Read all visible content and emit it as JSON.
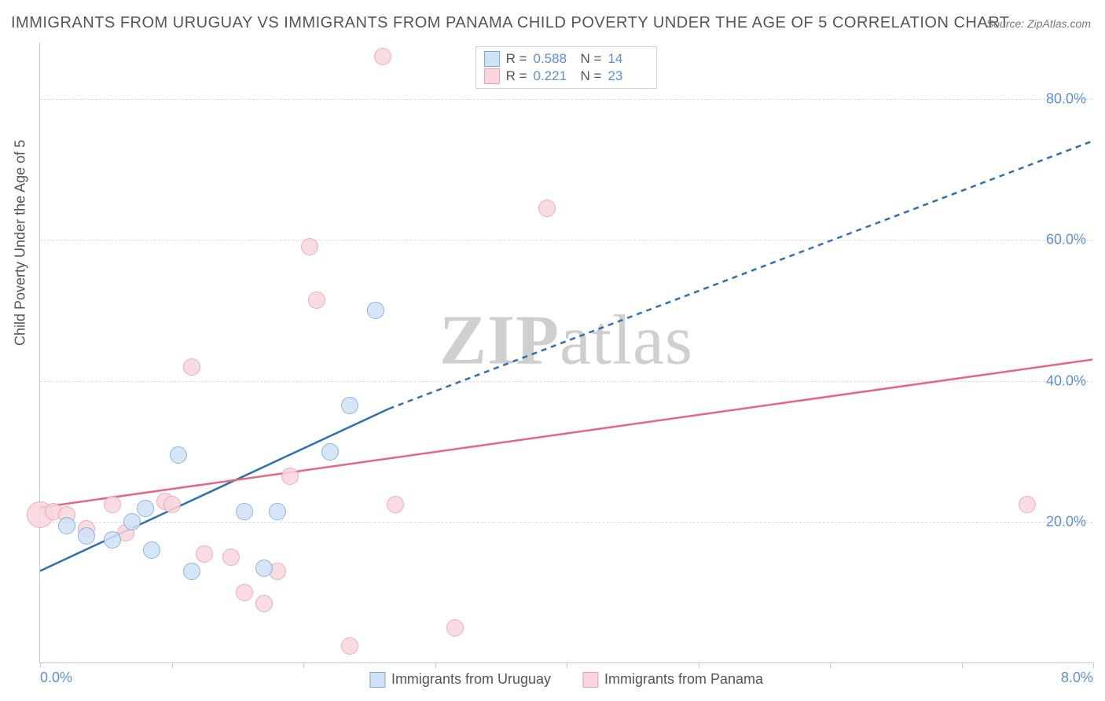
{
  "title": "IMMIGRANTS FROM URUGUAY VS IMMIGRANTS FROM PANAMA CHILD POVERTY UNDER THE AGE OF 5 CORRELATION CHART",
  "source_label": "Source: ",
  "source_value": "ZipAtlas.com",
  "watermark_bold": "ZIP",
  "watermark_light": "atlas",
  "ylabel": "Child Poverty Under the Age of 5",
  "colors": {
    "blue_fill": "#cfe2f6",
    "blue_stroke": "#7aa7d9",
    "blue_line": "#2f6fb3",
    "pink_fill": "#f9d5dd",
    "pink_stroke": "#e7a0b2",
    "pink_line": "#e8657f",
    "tick_text": "#5b8fd6",
    "grid": "#dcdcdc",
    "axis": "#c8c8c8",
    "text": "#555555",
    "bg": "#ffffff"
  },
  "chart": {
    "type": "scatter",
    "xlim": [
      0.0,
      8.0
    ],
    "ylim": [
      0.0,
      88.0
    ],
    "y_gridlines": [
      20.0,
      40.0,
      60.0,
      80.0
    ],
    "y_tick_labels": [
      "20.0%",
      "40.0%",
      "60.0%",
      "80.0%"
    ],
    "x_ticks": [
      0.0,
      1.0,
      2.0,
      3.0,
      4.0,
      5.0,
      6.0,
      7.0,
      8.0
    ],
    "x_tick_labels": {
      "0": "0.0%",
      "8": "8.0%"
    },
    "marker_radius": 11,
    "line_width": 2.5,
    "title_fontsize": 20,
    "label_fontsize": 18
  },
  "legend_top": {
    "rows": [
      {
        "color": "blue",
        "r_label": "R =",
        "r": "0.588",
        "n_label": "N =",
        "n": "14"
      },
      {
        "color": "pink",
        "r_label": "R =",
        "r": "0.221",
        "n_label": "N =",
        "n": "23"
      }
    ]
  },
  "legend_bottom": {
    "items": [
      {
        "color": "blue",
        "label": "Immigrants from Uruguay"
      },
      {
        "color": "pink",
        "label": "Immigrants from Panama"
      }
    ]
  },
  "series": {
    "uruguay": {
      "color": "blue",
      "points": [
        {
          "x": 0.2,
          "y": 19.5,
          "r": 11
        },
        {
          "x": 0.35,
          "y": 18.0,
          "r": 11
        },
        {
          "x": 0.55,
          "y": 17.5,
          "r": 11
        },
        {
          "x": 0.7,
          "y": 20.0,
          "r": 11
        },
        {
          "x": 0.85,
          "y": 16.0,
          "r": 11
        },
        {
          "x": 1.05,
          "y": 29.5,
          "r": 11
        },
        {
          "x": 1.15,
          "y": 13.0,
          "r": 11
        },
        {
          "x": 1.55,
          "y": 21.5,
          "r": 11
        },
        {
          "x": 1.7,
          "y": 13.5,
          "r": 11
        },
        {
          "x": 1.8,
          "y": 21.5,
          "r": 11
        },
        {
          "x": 2.2,
          "y": 30.0,
          "r": 11
        },
        {
          "x": 2.35,
          "y": 36.5,
          "r": 11
        },
        {
          "x": 2.55,
          "y": 50.0,
          "r": 11
        },
        {
          "x": 0.8,
          "y": 22.0,
          "r": 11
        }
      ],
      "trend": {
        "x1": 0.0,
        "y1": 13.0,
        "x2": 2.65,
        "y2": 36.0,
        "x2_ext": 8.0,
        "y2_ext": 74.0
      }
    },
    "panama": {
      "color": "pink",
      "points": [
        {
          "x": 0.0,
          "y": 21.0,
          "r": 17
        },
        {
          "x": 0.1,
          "y": 21.5,
          "r": 11
        },
        {
          "x": 0.2,
          "y": 21.0,
          "r": 11
        },
        {
          "x": 0.35,
          "y": 19.0,
          "r": 11
        },
        {
          "x": 0.55,
          "y": 22.5,
          "r": 11
        },
        {
          "x": 0.65,
          "y": 18.5,
          "r": 11
        },
        {
          "x": 0.95,
          "y": 23.0,
          "r": 11
        },
        {
          "x": 1.0,
          "y": 22.5,
          "r": 11
        },
        {
          "x": 1.15,
          "y": 42.0,
          "r": 11
        },
        {
          "x": 1.25,
          "y": 15.5,
          "r": 11
        },
        {
          "x": 1.45,
          "y": 15.0,
          "r": 11
        },
        {
          "x": 1.55,
          "y": 10.0,
          "r": 11
        },
        {
          "x": 1.7,
          "y": 8.5,
          "r": 11
        },
        {
          "x": 1.8,
          "y": 13.0,
          "r": 11
        },
        {
          "x": 1.9,
          "y": 26.5,
          "r": 11
        },
        {
          "x": 2.05,
          "y": 59.0,
          "r": 11
        },
        {
          "x": 2.1,
          "y": 51.5,
          "r": 11
        },
        {
          "x": 2.35,
          "y": 2.5,
          "r": 11
        },
        {
          "x": 2.6,
          "y": 86.0,
          "r": 11
        },
        {
          "x": 2.7,
          "y": 22.5,
          "r": 11
        },
        {
          "x": 3.15,
          "y": 5.0,
          "r": 11
        },
        {
          "x": 3.85,
          "y": 64.5,
          "r": 11
        },
        {
          "x": 7.5,
          "y": 22.5,
          "r": 11
        }
      ],
      "trend": {
        "x1": 0.0,
        "y1": 22.0,
        "x2": 8.0,
        "y2": 43.0
      }
    }
  }
}
